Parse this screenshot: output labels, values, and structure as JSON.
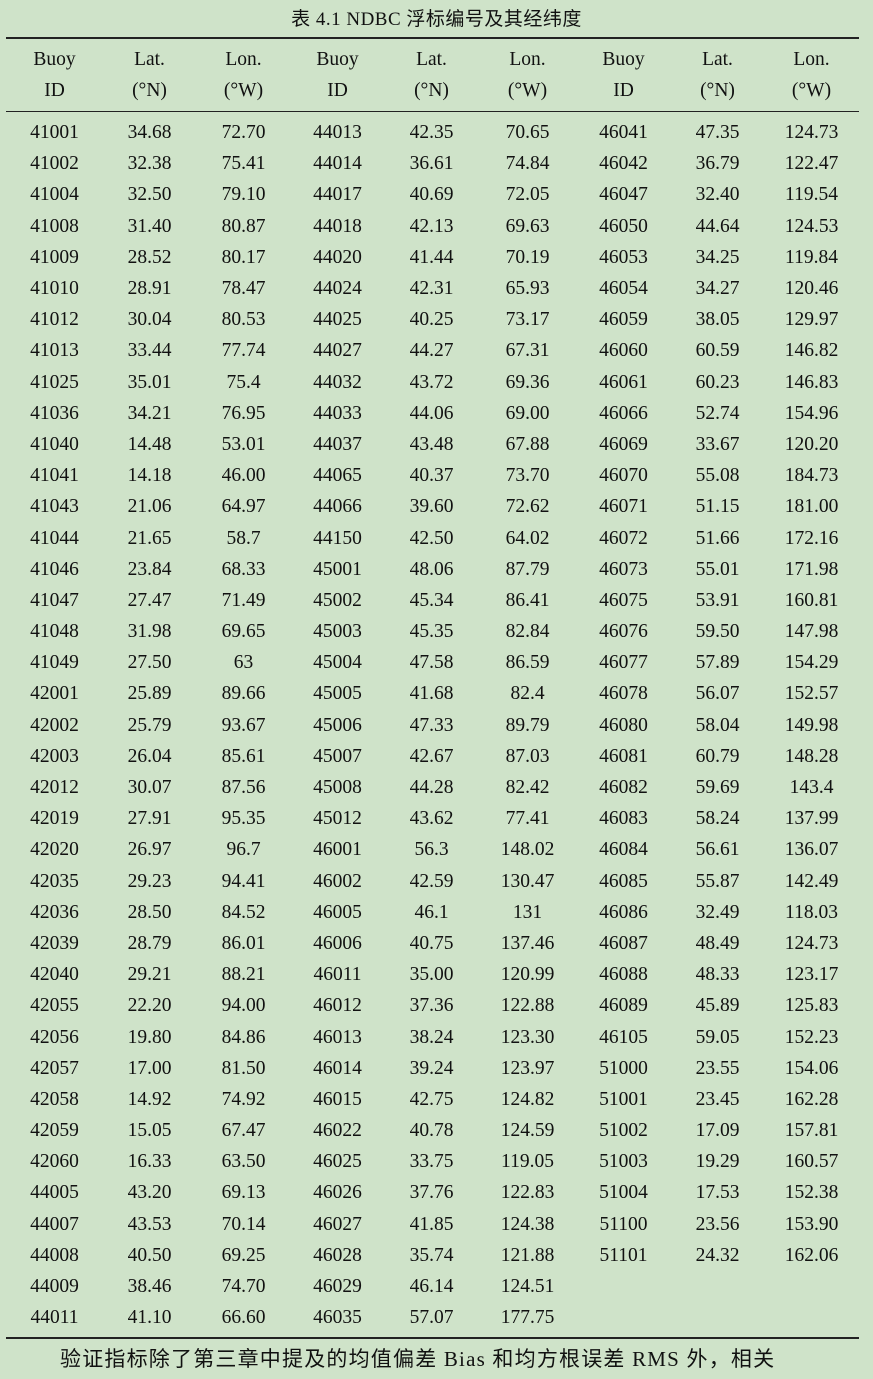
{
  "caption": "表 4.1 NDBC 浮标编号及其经纬度",
  "headers": [
    "Buoy ID",
    "Lat. (°N)",
    "Lon. (°W)"
  ],
  "header_lines": [
    [
      "Buoy",
      "ID"
    ],
    [
      "Lat.",
      "(°N)"
    ],
    [
      "Lon.",
      "(°W)"
    ]
  ],
  "rows": [
    [
      "41001",
      "34.68",
      "72.70",
      "44013",
      "42.35",
      "70.65",
      "46041",
      "47.35",
      "124.73"
    ],
    [
      "41002",
      "32.38",
      "75.41",
      "44014",
      "36.61",
      "74.84",
      "46042",
      "36.79",
      "122.47"
    ],
    [
      "41004",
      "32.50",
      "79.10",
      "44017",
      "40.69",
      "72.05",
      "46047",
      "32.40",
      "119.54"
    ],
    [
      "41008",
      "31.40",
      "80.87",
      "44018",
      "42.13",
      "69.63",
      "46050",
      "44.64",
      "124.53"
    ],
    [
      "41009",
      "28.52",
      "80.17",
      "44020",
      "41.44",
      "70.19",
      "46053",
      "34.25",
      "119.84"
    ],
    [
      "41010",
      "28.91",
      "78.47",
      "44024",
      "42.31",
      "65.93",
      "46054",
      "34.27",
      "120.46"
    ],
    [
      "41012",
      "30.04",
      "80.53",
      "44025",
      "40.25",
      "73.17",
      "46059",
      "38.05",
      "129.97"
    ],
    [
      "41013",
      "33.44",
      "77.74",
      "44027",
      "44.27",
      "67.31",
      "46060",
      "60.59",
      "146.82"
    ],
    [
      "41025",
      "35.01",
      "75.4",
      "44032",
      "43.72",
      "69.36",
      "46061",
      "60.23",
      "146.83"
    ],
    [
      "41036",
      "34.21",
      "76.95",
      "44033",
      "44.06",
      "69.00",
      "46066",
      "52.74",
      "154.96"
    ],
    [
      "41040",
      "14.48",
      "53.01",
      "44037",
      "43.48",
      "67.88",
      "46069",
      "33.67",
      "120.20"
    ],
    [
      "41041",
      "14.18",
      "46.00",
      "44065",
      "40.37",
      "73.70",
      "46070",
      "55.08",
      "184.73"
    ],
    [
      "41043",
      "21.06",
      "64.97",
      "44066",
      "39.60",
      "72.62",
      "46071",
      "51.15",
      "181.00"
    ],
    [
      "41044",
      "21.65",
      "58.7",
      "44150",
      "42.50",
      "64.02",
      "46072",
      "51.66",
      "172.16"
    ],
    [
      "41046",
      "23.84",
      "68.33",
      "45001",
      "48.06",
      "87.79",
      "46073",
      "55.01",
      "171.98"
    ],
    [
      "41047",
      "27.47",
      "71.49",
      "45002",
      "45.34",
      "86.41",
      "46075",
      "53.91",
      "160.81"
    ],
    [
      "41048",
      "31.98",
      "69.65",
      "45003",
      "45.35",
      "82.84",
      "46076",
      "59.50",
      "147.98"
    ],
    [
      "41049",
      "27.50",
      "63",
      "45004",
      "47.58",
      "86.59",
      "46077",
      "57.89",
      "154.29"
    ],
    [
      "42001",
      "25.89",
      "89.66",
      "45005",
      "41.68",
      "82.4",
      "46078",
      "56.07",
      "152.57"
    ],
    [
      "42002",
      "25.79",
      "93.67",
      "45006",
      "47.33",
      "89.79",
      "46080",
      "58.04",
      "149.98"
    ],
    [
      "42003",
      "26.04",
      "85.61",
      "45007",
      "42.67",
      "87.03",
      "46081",
      "60.79",
      "148.28"
    ],
    [
      "42012",
      "30.07",
      "87.56",
      "45008",
      "44.28",
      "82.42",
      "46082",
      "59.69",
      "143.4"
    ],
    [
      "42019",
      "27.91",
      "95.35",
      "45012",
      "43.62",
      "77.41",
      "46083",
      "58.24",
      "137.99"
    ],
    [
      "42020",
      "26.97",
      "96.7",
      "46001",
      "56.3",
      "148.02",
      "46084",
      "56.61",
      "136.07"
    ],
    [
      "42035",
      "29.23",
      "94.41",
      "46002",
      "42.59",
      "130.47",
      "46085",
      "55.87",
      "142.49"
    ],
    [
      "42036",
      "28.50",
      "84.52",
      "46005",
      "46.1",
      "131",
      "46086",
      "32.49",
      "118.03"
    ],
    [
      "42039",
      "28.79",
      "86.01",
      "46006",
      "40.75",
      "137.46",
      "46087",
      "48.49",
      "124.73"
    ],
    [
      "42040",
      "29.21",
      "88.21",
      "46011",
      "35.00",
      "120.99",
      "46088",
      "48.33",
      "123.17"
    ],
    [
      "42055",
      "22.20",
      "94.00",
      "46012",
      "37.36",
      "122.88",
      "46089",
      "45.89",
      "125.83"
    ],
    [
      "42056",
      "19.80",
      "84.86",
      "46013",
      "38.24",
      "123.30",
      "46105",
      "59.05",
      "152.23"
    ],
    [
      "42057",
      "17.00",
      "81.50",
      "46014",
      "39.24",
      "123.97",
      "51000",
      "23.55",
      "154.06"
    ],
    [
      "42058",
      "14.92",
      "74.92",
      "46015",
      "42.75",
      "124.82",
      "51001",
      "23.45",
      "162.28"
    ],
    [
      "42059",
      "15.05",
      "67.47",
      "46022",
      "40.78",
      "124.59",
      "51002",
      "17.09",
      "157.81"
    ],
    [
      "42060",
      "16.33",
      "63.50",
      "46025",
      "33.75",
      "119.05",
      "51003",
      "19.29",
      "160.57"
    ],
    [
      "44005",
      "43.20",
      "69.13",
      "46026",
      "37.76",
      "122.83",
      "51004",
      "17.53",
      "152.38"
    ],
    [
      "44007",
      "43.53",
      "70.14",
      "46027",
      "41.85",
      "124.38",
      "51100",
      "23.56",
      "153.90"
    ],
    [
      "44008",
      "40.50",
      "69.25",
      "46028",
      "35.74",
      "121.88",
      "51101",
      "24.32",
      "162.06"
    ],
    [
      "44009",
      "38.46",
      "74.70",
      "46029",
      "46.14",
      "124.51",
      "",
      "",
      ""
    ],
    [
      "44011",
      "41.10",
      "66.60",
      "46035",
      "57.07",
      "177.75",
      "",
      "",
      ""
    ]
  ],
  "paragraph": "验证指标除了第三章中提及的均值偏差 Bias 和均方根误差 RMS 外，相关"
}
